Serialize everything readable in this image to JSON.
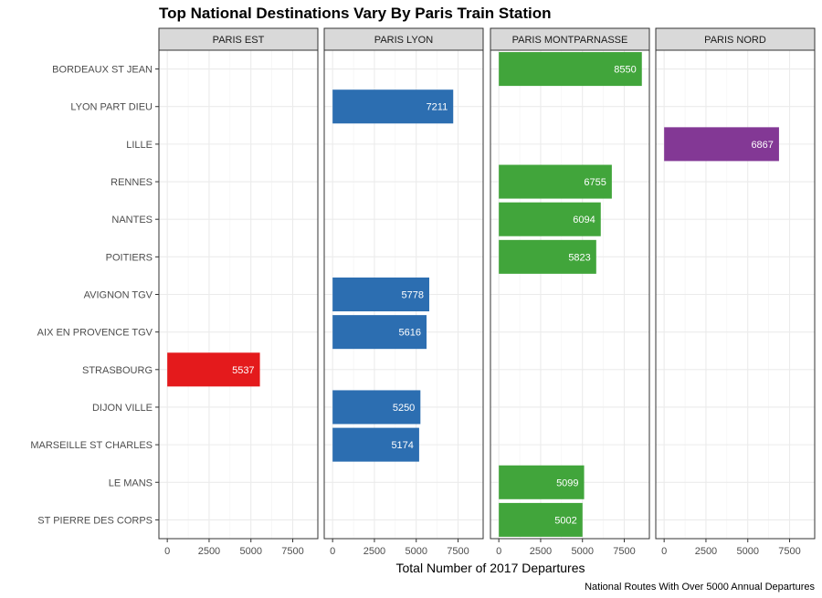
{
  "chart_data": {
    "type": "bar",
    "orientation": "horizontal",
    "facet": "station",
    "title": "Top National Destinations Vary By Paris Train Station",
    "xlabel": "Total Number of 2017 Departures",
    "ylabel": "",
    "caption": "National Routes With Over 5000 Annual Departures",
    "xlim": [
      -500,
      9000
    ],
    "x_ticks": [
      0,
      2500,
      5000,
      7500
    ],
    "grid": "major gridlines on (light gray), white panel background",
    "legend": "none",
    "categories": [
      "BORDEAUX ST JEAN",
      "LYON PART DIEU",
      "LILLE",
      "RENNES",
      "NANTES",
      "POITIERS",
      "AVIGNON TGV",
      "AIX EN PROVENCE TGV",
      "STRASBOURG",
      "DIJON VILLE",
      "MARSEILLE ST CHARLES",
      "LE MANS",
      "ST PIERRE DES CORPS"
    ],
    "panels": [
      {
        "name": "PARIS EST",
        "color": "#E41A1C",
        "bars": [
          {
            "category": "STRASBOURG",
            "value": 5537
          }
        ]
      },
      {
        "name": "PARIS LYON",
        "color": "#2C6EB1",
        "bars": [
          {
            "category": "LYON PART DIEU",
            "value": 7211
          },
          {
            "category": "AVIGNON TGV",
            "value": 5778
          },
          {
            "category": "AIX EN PROVENCE TGV",
            "value": 5616
          },
          {
            "category": "DIJON VILLE",
            "value": 5250
          },
          {
            "category": "MARSEILLE ST CHARLES",
            "value": 5174
          }
        ]
      },
      {
        "name": "PARIS MONTPARNASSE",
        "color": "#41A53B",
        "bars": [
          {
            "category": "BORDEAUX ST JEAN",
            "value": 8550
          },
          {
            "category": "RENNES",
            "value": 6755
          },
          {
            "category": "NANTES",
            "value": 6094
          },
          {
            "category": "POITIERS",
            "value": 5823
          },
          {
            "category": "LE MANS",
            "value": 5099
          },
          {
            "category": "ST PIERRE DES CORPS",
            "value": 5002
          }
        ]
      },
      {
        "name": "PARIS NORD",
        "color": "#833895",
        "bars": [
          {
            "category": "LILLE",
            "value": 6867
          }
        ]
      }
    ]
  }
}
